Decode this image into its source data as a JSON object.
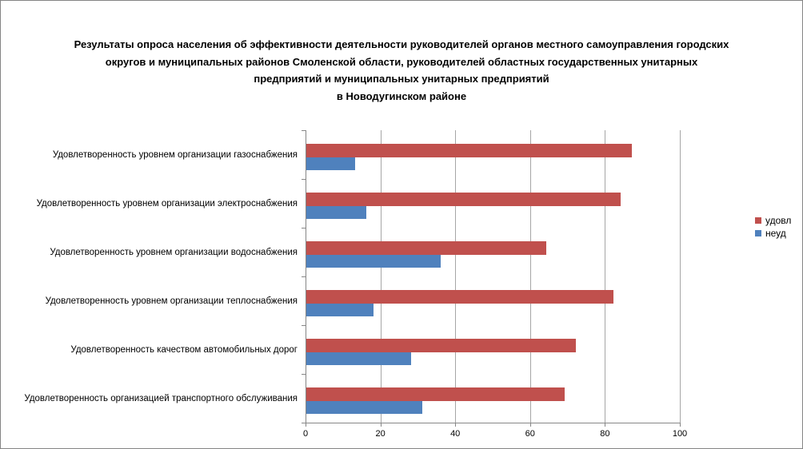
{
  "title": {
    "lines": [
      "Результаты опроса населения об эффективности деятельности руководителей органов местного самоуправления городских",
      "округов и муниципальных районов Смоленской области, руководителей областных государственных унитарных",
      "предприятий и муниципальных унитарных предприятий",
      "в Новодугинском районе"
    ]
  },
  "legend": {
    "position": "right",
    "items": [
      {
        "label": "удовл",
        "color": "#C0504D"
      },
      {
        "label": "неуд",
        "color": "#4F81BD"
      }
    ]
  },
  "chart_data": {
    "type": "bar",
    "orientation": "horizontal",
    "title": "Результаты опроса населения об эффективности деятельности руководителей органов местного самоуправления городских округов и муниципальных районов Смоленской области, руководителей областных государственных унитарных предприятий и муниципальных унитарных предприятий в Новодугинском районе",
    "categories": [
      "Удовлетворенность уровнем организации газоснабжения",
      "Удовлетворенность уровнем организации электроснабжения",
      "Удовлетворенность уровнем организации водоснабжения",
      "Удовлетворенность уровнем организации теплоснабжения",
      "Удовлетворенность качеством автомобильных дорог",
      "Удовлетворенность организацией транспортного обслуживания"
    ],
    "series": [
      {
        "name": "удовл",
        "color": "#C0504D",
        "values": [
          87,
          84,
          64,
          82,
          72,
          69
        ]
      },
      {
        "name": "неуд",
        "color": "#4F81BD",
        "values": [
          13,
          16,
          36,
          18,
          28,
          31
        ]
      }
    ],
    "xlabel": "",
    "ylabel": "",
    "xlim": [
      0,
      100
    ],
    "x_ticks": [
      0,
      20,
      40,
      60,
      80,
      100
    ],
    "grid": true,
    "legend_position": "right",
    "colors": {
      "gridline": "#A6A6A6",
      "axis": "#868686",
      "background": "#FFFFFF",
      "border": "#848484"
    }
  }
}
